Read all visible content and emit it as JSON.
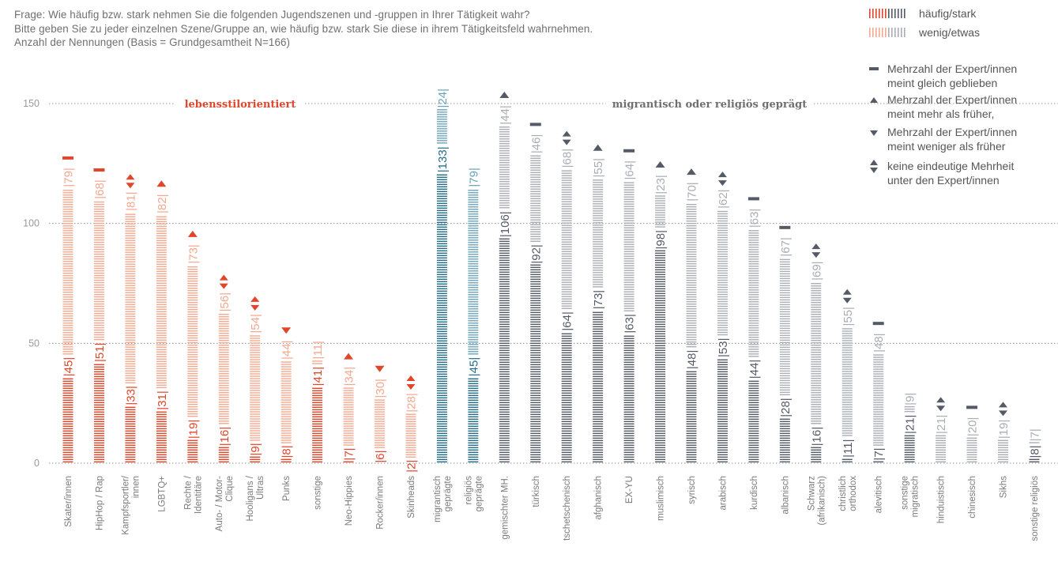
{
  "header": {
    "line1": "Frage: Wie häufig bzw. stark nehmen Sie die folgenden Jugendszenen und -gruppen in Ihrer Tätigkeit wahr?",
    "line2": "Bitte geben Sie zu jeder einzelnen Szene/Gruppe an, wie häufig bzw. stark Sie diese in ihrem Tätigkeitsfeld wahrnehmen.",
    "line3": "Anzahl der Nennungen (Basis = Grundgesamtheit N=166)"
  },
  "legend": {
    "haeufig": "häufig/stark",
    "wenig": "wenig/etwas",
    "same_1": "Mehrzahl der Expert/innen",
    "same_2": "meint gleich geblieben",
    "more_1": "Mehrzahl der Expert/innen",
    "more_2": "meint mehr als früher,",
    "less_1": "Mehrzahl der Expert/innen",
    "less_2": "meint weniger als früher",
    "unclear_1": "keine eindeutige Mehrheit",
    "unclear_2": "unter den Expert/innen"
  },
  "colors": {
    "life_strong": "#e0462a",
    "life_light": "#f4a88f",
    "mig_strong": "#236f8a",
    "mig_light": "#6aa3b8",
    "rel_strong": "#555b66",
    "rel_light": "#a9adb4",
    "gridline": "#9a9a9a"
  },
  "chart_data": {
    "type": "bar",
    "stacked": true,
    "ylim": [
      0,
      160
    ],
    "yticks": [
      0,
      50,
      100,
      150
    ],
    "grid": "dotted horizontal",
    "groups": [
      {
        "label": "lebensstilorientiert",
        "range": [
          0,
          11
        ]
      },
      {
        "label": "migrantisch oder religiös geprägt",
        "range": [
          12,
          31
        ]
      }
    ],
    "categories": [
      [
        "Skater/innen"
      ],
      [
        "HipHop / Rap"
      ],
      [
        "Kampfsportler/",
        "innen"
      ],
      [
        "LGBTQ+"
      ],
      [
        "Rechte /",
        "Identitäre"
      ],
      [
        "Auto- / Motor-",
        "Clique"
      ],
      [
        "Hooligans /",
        "Ultras"
      ],
      [
        "Punks"
      ],
      [
        "sonstige"
      ],
      [
        "Neo-Hippies"
      ],
      [
        "Rocker/innen"
      ],
      [
        "Skinheads"
      ],
      [
        "migrantisch",
        "geprägte"
      ],
      [
        "religiös",
        "geprägte"
      ],
      [
        "gemischter MH."
      ],
      [
        "türkisch"
      ],
      [
        "tschetschenisch"
      ],
      [
        "afghanisch"
      ],
      [
        "EX-YU"
      ],
      [
        "muslimisch"
      ],
      [
        "syrisch"
      ],
      [
        "arabisch"
      ],
      [
        "kurdisch"
      ],
      [
        "albanisch"
      ],
      [
        "Schwarz",
        "(afrikanisch)"
      ],
      [
        "christlich",
        "orthodox"
      ],
      [
        "alevitisch"
      ],
      [
        "sonstige",
        "migratisch"
      ],
      [
        "hinduistisch"
      ],
      [
        "chinesisch"
      ],
      [
        "Sikhs"
      ],
      [
        "sonstige religiös"
      ]
    ],
    "series": [
      {
        "name": "häufig/stark",
        "values": [
          45,
          51,
          33,
          31,
          19,
          16,
          9,
          8,
          41,
          7,
          6,
          2,
          133,
          45,
          106,
          92,
          64,
          73,
          63,
          98,
          48,
          53,
          44,
          28,
          16,
          11,
          7,
          21,
          0,
          0,
          0,
          8
        ]
      },
      {
        "name": "wenig/etwas",
        "values": [
          79,
          68,
          81,
          82,
          73,
          56,
          54,
          44,
          11,
          34,
          30,
          28,
          24,
          79,
          44,
          46,
          68,
          55,
          64,
          23,
          70,
          62,
          63,
          67,
          69,
          55,
          48,
          9,
          21,
          20,
          19,
          7
        ]
      }
    ],
    "trend": [
      "same",
      "same",
      "unclear",
      "more",
      "more",
      "unclear",
      "unclear",
      "less",
      "none",
      "more",
      "less",
      "unclear",
      "none",
      "none",
      "more",
      "same",
      "unclear",
      "more",
      "same",
      "more",
      "more",
      "unclear",
      "same",
      "same",
      "unclear",
      "unclear",
      "same",
      "none",
      "unclear",
      "same",
      "unclear",
      "none"
    ],
    "palette": [
      "life",
      "life",
      "life",
      "life",
      "life",
      "life",
      "life",
      "life",
      "life",
      "life",
      "life",
      "life",
      "mig",
      "mig",
      "rel",
      "rel",
      "rel",
      "rel",
      "rel",
      "rel",
      "rel",
      "rel",
      "rel",
      "rel",
      "rel",
      "rel",
      "rel",
      "rel",
      "rel",
      "rel",
      "rel",
      "rel"
    ]
  }
}
